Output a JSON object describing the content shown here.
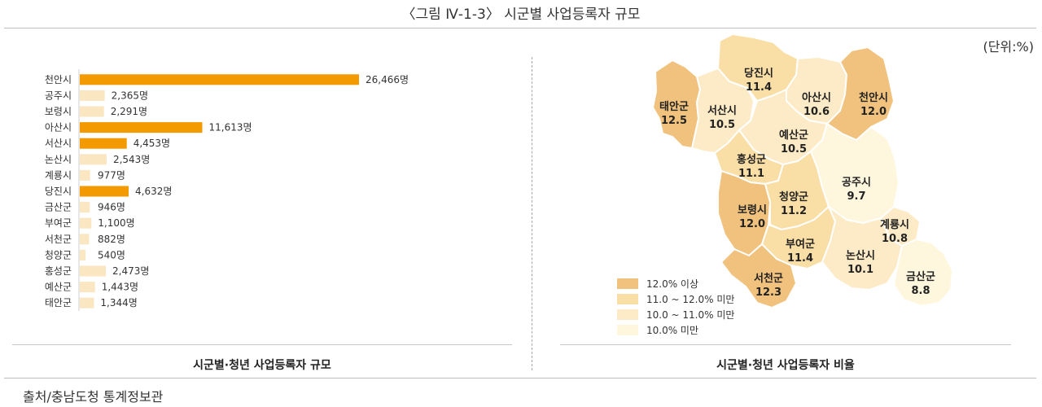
{
  "figure_title": "〈그림 Ⅳ-1-3〉 시군별 사업등록자 규모",
  "unit_label": "(단위:%)",
  "source": "출처/충남도청 통계정보관",
  "chart_data": [
    {
      "type": "bar",
      "orientation": "horizontal",
      "caption": "시군별·청년 사업등록자 규모",
      "categories": [
        "천안시",
        "공주시",
        "보령시",
        "아산시",
        "서산시",
        "논산시",
        "계룡시",
        "당진시",
        "금산군",
        "부여군",
        "서천군",
        "청양군",
        "홍성군",
        "예산군",
        "태안군"
      ],
      "values": [
        26466,
        2365,
        2291,
        11613,
        4453,
        2543,
        977,
        4632,
        946,
        1100,
        882,
        540,
        2473,
        1443,
        1344
      ],
      "value_labels": [
        "26,466명",
        "2,365명",
        "2,291명",
        "11,613명",
        "4,453명",
        "2,543명",
        "977명",
        "4,632명",
        "946명",
        "1,100명",
        "882명",
        "540명",
        "2,473명",
        "1,443명",
        "1,344명"
      ],
      "highlight_color": "#f29a00",
      "base_color": "#fbe6c2",
      "highlight_threshold": 4000
    },
    {
      "type": "choropleth",
      "caption": "시군별·청년 사업등록자 비율",
      "regions": [
        {
          "name": "태안군",
          "value": "12.5",
          "class": 0
        },
        {
          "name": "서산시",
          "value": "10.5",
          "class": 2
        },
        {
          "name": "당진시",
          "value": "11.4",
          "class": 1
        },
        {
          "name": "아산시",
          "value": "10.6",
          "class": 2
        },
        {
          "name": "천안시",
          "value": "12.0",
          "class": 0
        },
        {
          "name": "예산군",
          "value": "10.5",
          "class": 2
        },
        {
          "name": "홍성군",
          "value": "11.1",
          "class": 1
        },
        {
          "name": "청양군",
          "value": "11.2",
          "class": 1
        },
        {
          "name": "공주시",
          "value": "9.7",
          "class": 3
        },
        {
          "name": "보령시",
          "value": "12.0",
          "class": 0
        },
        {
          "name": "부여군",
          "value": "11.4",
          "class": 1
        },
        {
          "name": "계룡시",
          "value": "10.8",
          "class": 2
        },
        {
          "name": "논산시",
          "value": "10.1",
          "class": 2
        },
        {
          "name": "서천군",
          "value": "12.3",
          "class": 0
        },
        {
          "name": "금산군",
          "value": "8.8",
          "class": 3
        }
      ],
      "legend": [
        {
          "label": "12.0% 이상",
          "color": "#f0c27e"
        },
        {
          "label": "11.0 ~ 12.0% 미만",
          "color": "#f9dea6"
        },
        {
          "label": "10.0 ~ 11.0% 미만",
          "color": "#fcebc6"
        },
        {
          "label": "10.0% 미만",
          "color": "#fef6dd"
        }
      ]
    }
  ]
}
